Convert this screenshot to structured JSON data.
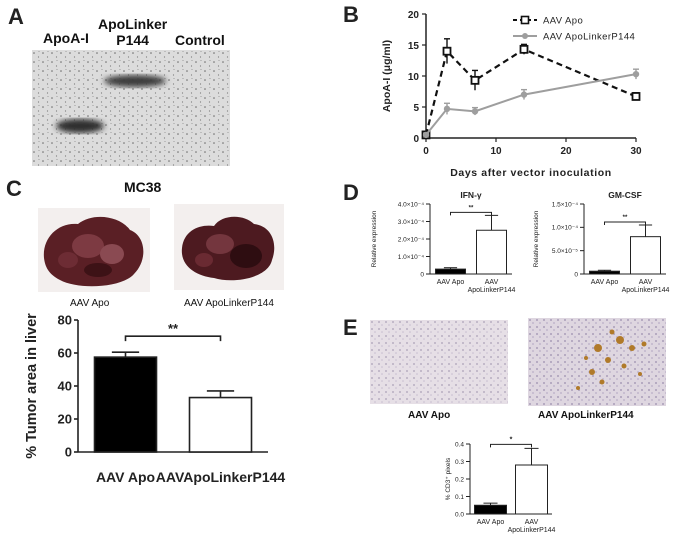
{
  "panels": {
    "a": {
      "letter": "A",
      "lanes": [
        "ApoA-I",
        "ApoLinker\nP144",
        "Control"
      ]
    },
    "b": {
      "letter": "B"
    },
    "c": {
      "letter": "C",
      "title": "MC38",
      "photo_labels": [
        "AAV Apo",
        "AAV ApoLinkerP144"
      ]
    },
    "d": {
      "letter": "D"
    },
    "e": {
      "letter": "E",
      "photo_labels": [
        "AAV Apo",
        "AAV ApoLinkerP144"
      ]
    }
  },
  "chart_data": [
    {
      "id": "B",
      "type": "line",
      "xlabel": "Days after vector inoculation",
      "ylabel": "ApoA-I (μg/ml)",
      "xlim": [
        0,
        30
      ],
      "ylim": [
        0,
        20
      ],
      "xticks": [
        "0",
        "10",
        "20",
        "30"
      ],
      "yticks": [
        "0",
        "5",
        "10",
        "15",
        "20"
      ],
      "legend_position": "top-right",
      "series": [
        {
          "name": "AAV Apo",
          "color": "#111111",
          "style": "dashed",
          "marker": "open-square",
          "x": [
            0,
            3,
            7,
            14,
            30
          ],
          "y": [
            0.5,
            14,
            9.3,
            14.3,
            6.7
          ],
          "err": [
            0.3,
            2.0,
            1.6,
            0.8,
            0.6
          ]
        },
        {
          "name": "AAV ApoLinkerP144",
          "color": "#9e9e9e",
          "style": "solid",
          "marker": "circle",
          "x": [
            0,
            3,
            7,
            14,
            30
          ],
          "y": [
            0.5,
            4.7,
            4.3,
            7.0,
            10.3
          ],
          "err": [
            0.2,
            0.9,
            0.6,
            0.8,
            0.8
          ]
        }
      ]
    },
    {
      "id": "C",
      "type": "bar",
      "ylabel": "% Tumor area in liver",
      "ylim": [
        0,
        80
      ],
      "yticks": [
        "0",
        "20",
        "40",
        "60",
        "80"
      ],
      "categories": [
        "AAV Apo",
        "AAVApoLinkerP144"
      ],
      "values": [
        57.5,
        33
      ],
      "err": [
        3,
        4
      ],
      "fills": [
        "#000000",
        "#ffffff"
      ],
      "significance": "**"
    },
    {
      "id": "D1",
      "type": "bar",
      "title": "IFN-γ",
      "ylabel": "Relative expression",
      "ylim": [
        0,
        4
      ],
      "yticks": [
        "0",
        "1.0×10⁻⁴",
        "2.0×10⁻⁴",
        "3.0×10⁻⁴",
        "4.0×10⁻⁴"
      ],
      "categories": [
        "AAV Apo",
        "AAV\nApoLinkerP144"
      ],
      "values": [
        0.28,
        2.5
      ],
      "err": [
        0.08,
        0.85
      ],
      "fills": [
        "#000000",
        "#ffffff"
      ],
      "significance": "**"
    },
    {
      "id": "D2",
      "type": "bar",
      "title": "GM-CSF",
      "ylabel": "Relative expression",
      "ylim": [
        0,
        1.5
      ],
      "yticks": [
        "0",
        "5.0×10⁻⁵",
        "1.0×10⁻⁴",
        "1.5×10⁻⁴"
      ],
      "categories": [
        "AAV Apo",
        "AAV\nApoLinkerP144"
      ],
      "values": [
        0.06,
        0.8
      ],
      "err": [
        0.02,
        0.25
      ],
      "fills": [
        "#000000",
        "#ffffff"
      ],
      "significance": "**"
    },
    {
      "id": "E",
      "type": "bar",
      "ylabel": "% CD3⁺ pixels",
      "ylim": [
        0,
        0.4
      ],
      "yticks": [
        "0.0",
        "0.1",
        "0.2",
        "0.3",
        "0.4"
      ],
      "categories": [
        "AAV Apo",
        "AAV\nApoLinkerP144"
      ],
      "values": [
        0.05,
        0.28
      ],
      "err": [
        0.012,
        0.095
      ],
      "fills": [
        "#000000",
        "#ffffff"
      ],
      "significance": "*"
    }
  ]
}
